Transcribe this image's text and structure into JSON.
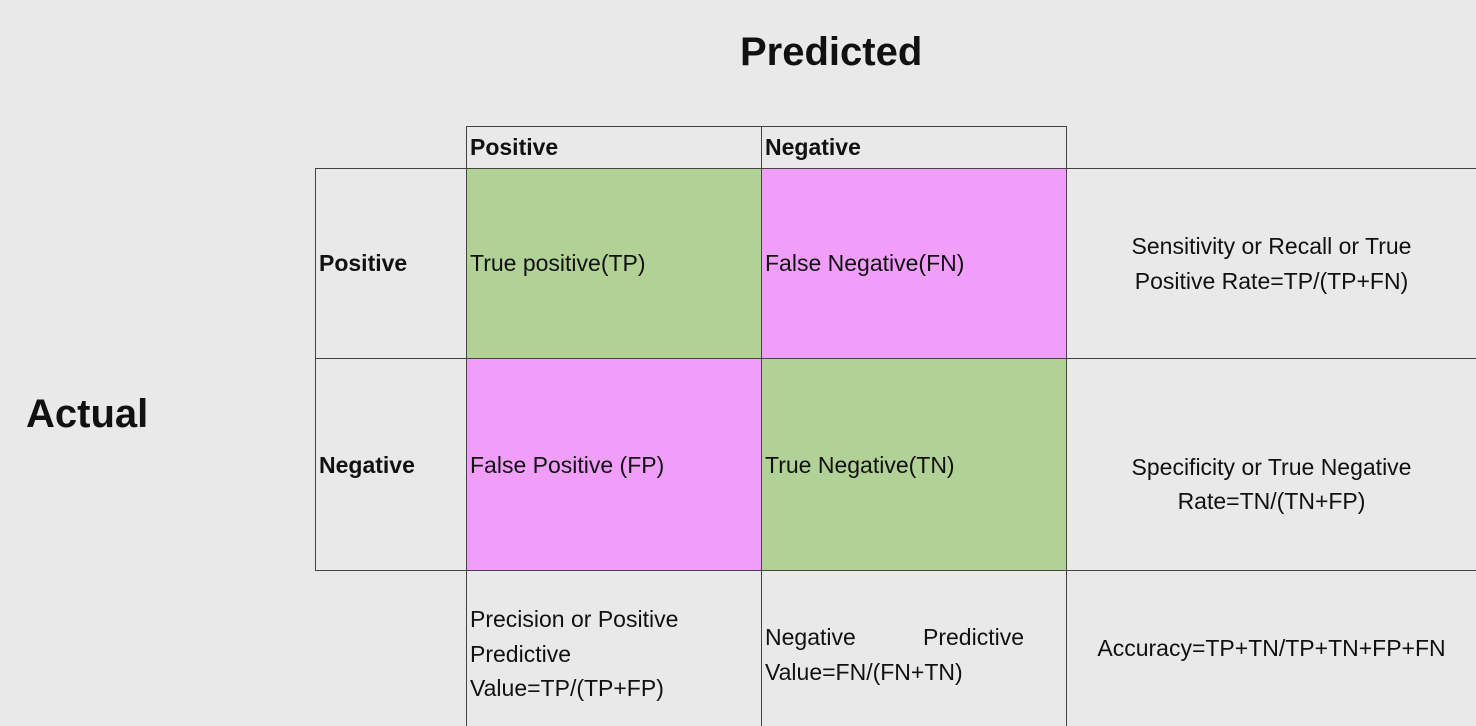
{
  "titles": {
    "predicted": "Predicted",
    "actual": "Actual"
  },
  "col_headers": [
    "Positive",
    "Negative"
  ],
  "row_headers": [
    "Positive",
    "Negative"
  ],
  "cells": {
    "tp": "True positive(TP)",
    "fn": "False Negative(FN)",
    "fp": "False Positive (FP)",
    "tn": "True Negative(TN)"
  },
  "row_metrics": {
    "sensitivity_line1": "Sensitivity or Recall or True",
    "sensitivity_line2": "Positive Rate=TP/(TP+FN)",
    "specificity_line1": "Specificity or True Negative",
    "specificity_line2": "Rate=TN/(TN+FP)"
  },
  "col_metrics": {
    "precision_line1": "Precision or Positive",
    "precision_line2": "Predictive",
    "precision_line3": "Value=TP/(TP+FP)",
    "npv_word1": "Negative",
    "npv_word2": "Predictive",
    "npv_line2": "Value=FN/(FN+TN)",
    "accuracy": "Accuracy=TP+TN/TP+TN+FP+FN"
  },
  "colors": {
    "correct": "#b2d196",
    "incorrect": "#f09ef9",
    "background": "#e9e9e9"
  }
}
